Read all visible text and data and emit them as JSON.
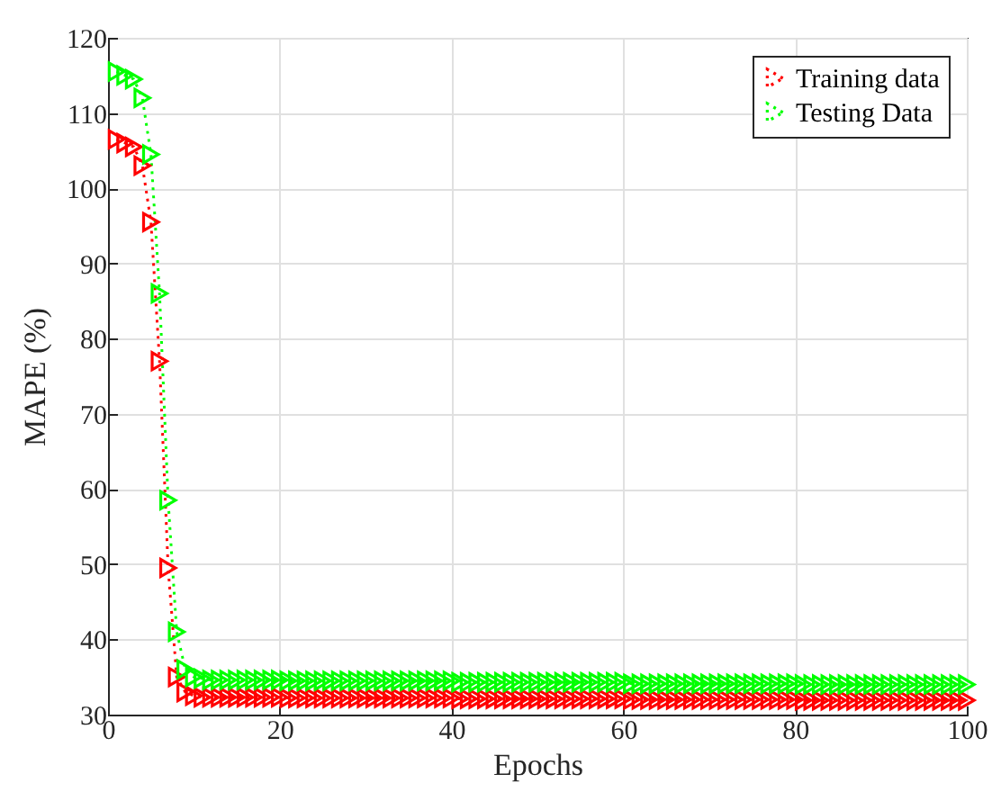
{
  "chart_data": {
    "type": "line",
    "xlabel": "Epochs",
    "ylabel": "MAPE (%)",
    "x": [
      1,
      2,
      3,
      4,
      5,
      6,
      7,
      8,
      9,
      10,
      11,
      12,
      13,
      14,
      15,
      16,
      17,
      18,
      19,
      20,
      21,
      22,
      23,
      24,
      25,
      26,
      27,
      28,
      29,
      30,
      31,
      32,
      33,
      34,
      35,
      36,
      37,
      38,
      39,
      40,
      41,
      42,
      43,
      44,
      45,
      46,
      47,
      48,
      49,
      50,
      51,
      52,
      53,
      54,
      55,
      56,
      57,
      58,
      59,
      60,
      61,
      62,
      63,
      64,
      65,
      66,
      67,
      68,
      69,
      70,
      71,
      72,
      73,
      74,
      75,
      76,
      77,
      78,
      79,
      80,
      81,
      82,
      83,
      84,
      85,
      86,
      87,
      88,
      89,
      90,
      91,
      92,
      93,
      94,
      95,
      96,
      97,
      98,
      99,
      100
    ],
    "series": [
      {
        "name": "Training data",
        "color": "#ff0000",
        "values": [
          106.5,
          106,
          105.5,
          103,
          95.5,
          77,
          49.5,
          35,
          33,
          32.5,
          32.3,
          32.3,
          32.3,
          32.3,
          32.3,
          32.3,
          32.3,
          32.3,
          32.3,
          32.3,
          32.2,
          32.2,
          32.2,
          32.2,
          32.2,
          32.2,
          32.2,
          32.2,
          32.2,
          32.2,
          32.2,
          32.2,
          32.2,
          32.2,
          32.2,
          32.2,
          32.2,
          32.2,
          32.2,
          32.2,
          32.1,
          32.1,
          32.1,
          32.1,
          32.1,
          32.1,
          32.1,
          32.1,
          32.1,
          32.1,
          32.1,
          32.1,
          32.1,
          32.1,
          32.1,
          32.1,
          32.1,
          32.1,
          32.1,
          32.1,
          32,
          32,
          32,
          32,
          32,
          32,
          32,
          32,
          32,
          32,
          32,
          32,
          32,
          32,
          32,
          32,
          32,
          32,
          32,
          32,
          31.9,
          31.9,
          31.9,
          31.9,
          31.9,
          31.9,
          31.9,
          31.9,
          31.9,
          31.9,
          31.9,
          31.9,
          31.9,
          31.9,
          31.9,
          31.9,
          31.9,
          31.9,
          31.9,
          31.9
        ]
      },
      {
        "name": "Testing Data",
        "color": "#00ff00",
        "values": [
          115.5,
          115,
          114.5,
          112,
          104.5,
          86,
          58.5,
          41,
          36,
          35,
          34.8,
          34.6,
          34.6,
          34.6,
          34.6,
          34.6,
          34.6,
          34.6,
          34.6,
          34.6,
          34.5,
          34.5,
          34.5,
          34.5,
          34.5,
          34.5,
          34.5,
          34.5,
          34.5,
          34.5,
          34.5,
          34.5,
          34.5,
          34.5,
          34.5,
          34.5,
          34.5,
          34.5,
          34.5,
          34.5,
          34.3,
          34.3,
          34.3,
          34.3,
          34.3,
          34.3,
          34.3,
          34.3,
          34.3,
          34.3,
          34.3,
          34.3,
          34.3,
          34.3,
          34.3,
          34.3,
          34.3,
          34.3,
          34.3,
          34.3,
          34.1,
          34.1,
          34.1,
          34.1,
          34.1,
          34.1,
          34.1,
          34.1,
          34.1,
          34.1,
          34.1,
          34.1,
          34.1,
          34.1,
          34.1,
          34.1,
          34.1,
          34.1,
          34.1,
          34.1,
          34,
          34,
          34,
          34,
          34,
          34,
          34,
          34,
          34,
          34,
          34,
          34,
          34,
          34,
          34,
          34,
          34,
          34,
          34,
          34
        ]
      }
    ],
    "xlim": [
      0,
      100
    ],
    "xticks": [
      0,
      20,
      40,
      60,
      80,
      100
    ],
    "ylim": [
      30,
      120
    ],
    "yticks": [
      30,
      40,
      50,
      60,
      70,
      80,
      90,
      100,
      110,
      120
    ],
    "grid": true,
    "legend": "top right",
    "marker": "triangle",
    "line_style": "dotted"
  }
}
